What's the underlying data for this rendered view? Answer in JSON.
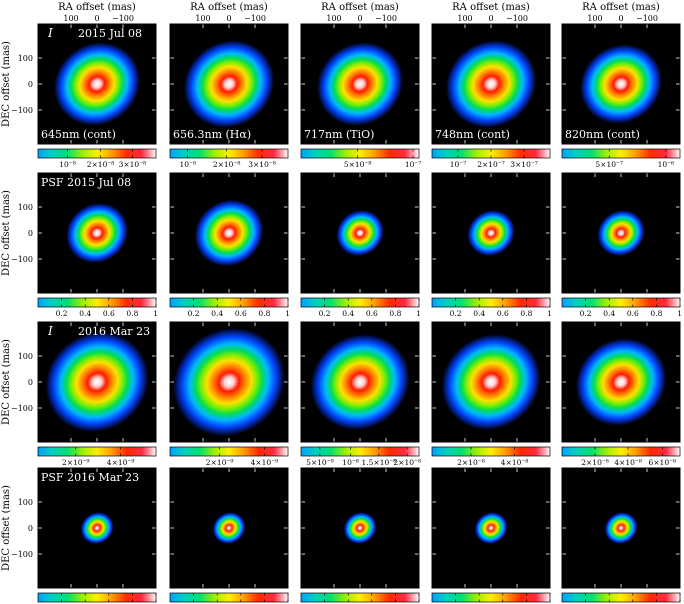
{
  "figure": {
    "ra_axis_title": "RA offset (mas)",
    "dec_axis_title": "DEC offset (mas)",
    "ra_ticks_reversed": [
      "100",
      "0",
      "−100"
    ],
    "ra_ticks_forward": [
      "−100",
      "0",
      "100"
    ],
    "dec_ticks": [
      "100",
      "0",
      "−100"
    ],
    "columns": [
      {
        "filter": "645nm (cont)",
        "ra_ticks": "reversed"
      },
      {
        "filter": "656.3nm (Hα)",
        "ra_ticks": "reversed"
      },
      {
        "filter": "717nm (TiO)",
        "ra_ticks": "reversed"
      },
      {
        "filter": "748nm (cont)",
        "ra_ticks": "reversed"
      },
      {
        "filter": "820nm (cont)",
        "ra_ticks": "forward"
      }
    ],
    "rows": [
      {
        "row_label_italic": "I",
        "row_label": "2015 Jul 08",
        "show_filters": true,
        "source_sizes": [
          1.0,
          1.05,
          1.0,
          1.05,
          0.95
        ],
        "colorbars": [
          [
            {
              "pos": 0.25,
              "label": "10⁻⁸"
            },
            {
              "pos": 0.53,
              "label": "2×10⁻⁸"
            },
            {
              "pos": 0.8,
              "label": "3×10⁻⁸"
            }
          ],
          [
            {
              "pos": 0.15,
              "label": "10⁻⁸"
            },
            {
              "pos": 0.48,
              "label": "2×10⁻⁸"
            },
            {
              "pos": 0.78,
              "label": "3×10⁻⁸"
            }
          ],
          [
            {
              "pos": 0.48,
              "label": "5×10⁻⁸"
            },
            {
              "pos": 0.95,
              "label": "10⁻⁷"
            }
          ],
          [
            {
              "pos": 0.22,
              "label": "10⁻⁷"
            },
            {
              "pos": 0.5,
              "label": "2×10⁻⁷"
            },
            {
              "pos": 0.78,
              "label": "3×10⁻⁷"
            }
          ],
          [
            {
              "pos": 0.4,
              "label": "5×10⁻⁷"
            },
            {
              "pos": 0.88,
              "label": "10⁻⁶"
            }
          ]
        ]
      },
      {
        "row_label_italic": "",
        "row_label": "PSF 2015 Jul 08",
        "show_filters": false,
        "source_sizes": [
          0.72,
          0.8,
          0.55,
          0.55,
          0.55
        ],
        "colorbars": "fraction"
      },
      {
        "row_label_italic": "I",
        "row_label": "2016 Mar 23",
        "show_filters": false,
        "source_sizes": [
          1.2,
          1.3,
          1.15,
          1.15,
          1.05
        ],
        "colorbars": [
          [
            {
              "pos": 0.32,
              "label": "2×10⁻⁹"
            },
            {
              "pos": 0.7,
              "label": "4×10⁻⁹"
            }
          ],
          [
            {
              "pos": 0.42,
              "label": "2×10⁻⁹"
            },
            {
              "pos": 0.8,
              "label": "4×10⁻⁹"
            }
          ],
          [
            {
              "pos": 0.16,
              "label": "5×10⁻⁹"
            },
            {
              "pos": 0.42,
              "label": "10⁻⁸"
            },
            {
              "pos": 0.66,
              "label": "1.5×10⁻⁸"
            },
            {
              "pos": 0.9,
              "label": "2×10⁻⁸"
            }
          ],
          [
            {
              "pos": 0.33,
              "label": "2×10⁻⁸"
            },
            {
              "pos": 0.7,
              "label": "4×10⁻⁸"
            }
          ],
          [
            {
              "pos": 0.28,
              "label": "2×10⁻⁸"
            },
            {
              "pos": 0.56,
              "label": "4×10⁻⁸"
            },
            {
              "pos": 0.85,
              "label": "6×10⁻⁸"
            }
          ]
        ]
      },
      {
        "row_label_italic": "",
        "row_label": "PSF 2016 Mar 23",
        "show_filters": false,
        "source_sizes": [
          0.38,
          0.38,
          0.38,
          0.38,
          0.38
        ],
        "colorbars": "fraction"
      }
    ],
    "fraction_ticks": [
      "0.2",
      "0.4",
      "0.6",
      "0.8",
      "1"
    ]
  }
}
